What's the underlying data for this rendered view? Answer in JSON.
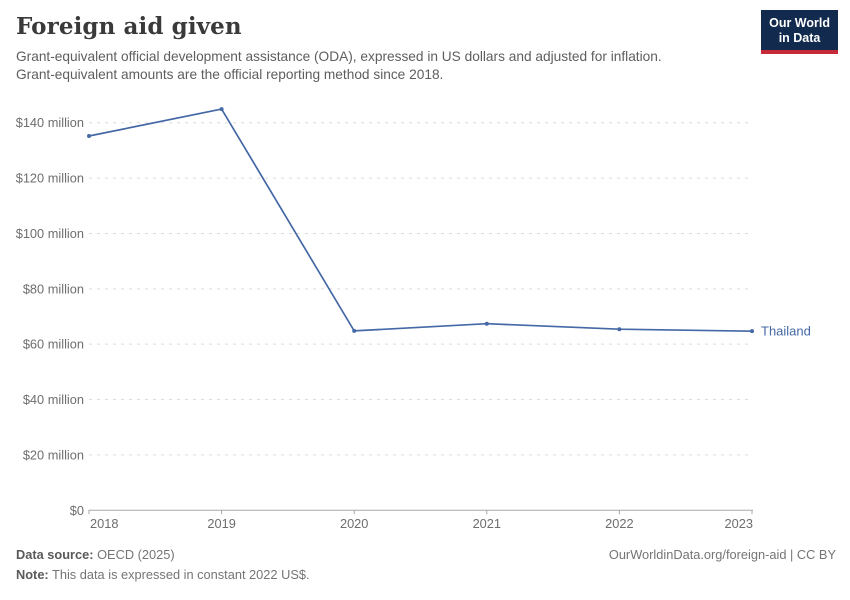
{
  "header": {
    "title": "Foreign aid given",
    "subtitle_line1": "Grant-equivalent official development assistance (ODA), expressed in US dollars and adjusted for inflation.",
    "subtitle_line2": "Grant-equivalent amounts are the official reporting method since 2018.",
    "logo": {
      "line1": "Our World",
      "line2": "in Data",
      "bg_color": "#122a4d",
      "accent_color": "#c5293a"
    }
  },
  "chart_data": {
    "type": "line",
    "title": "Foreign aid given",
    "unit": "US$, constant 2022 prices",
    "x": [
      2018,
      2019,
      2020,
      2021,
      2022,
      2023
    ],
    "xtick_labels": [
      "2018",
      "2019",
      "2020",
      "2021",
      "2022",
      "2023"
    ],
    "series": [
      {
        "name": "Thailand",
        "values": [
          135.2,
          144.9,
          64.8,
          67.4,
          65.4,
          64.7
        ],
        "color": "#4568a6"
      }
    ],
    "values_unit": "million US$",
    "ylim": [
      0,
      148
    ],
    "yticks": [
      0,
      20,
      40,
      60,
      80,
      100,
      120,
      140
    ],
    "ytick_labels": [
      "$0",
      "$20 million",
      "$40 million",
      "$60 million",
      "$80 million",
      "$100 million",
      "$120 million",
      "$140 million"
    ],
    "grid": "horizontal dashed",
    "legend_position": "end-of-line label",
    "colors": {
      "gridline": "#dcdcdc",
      "axis": "#a8a8a8",
      "tick_text": "#6e6e6e"
    }
  },
  "footer": {
    "source_label": "Data source:",
    "source_value": " OECD (2025)",
    "note_label": "Note:",
    "note_value": " This data is expressed in constant 2022 US$.",
    "link": "OurWorldinData.org/foreign-aid | CC BY"
  }
}
